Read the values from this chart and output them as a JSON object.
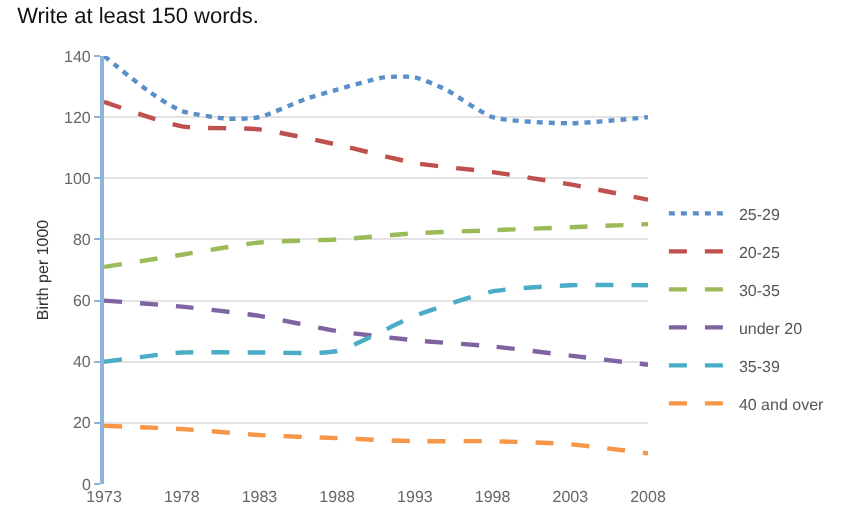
{
  "chart_data": {
    "type": "line",
    "title": "Write at least 150 words.",
    "ylabel": "Birth per 1000",
    "xlim": [
      1973,
      2008
    ],
    "xticks": [
      1973,
      1978,
      1983,
      1988,
      1993,
      1998,
      2003,
      2008
    ],
    "ylim": [
      0,
      140
    ],
    "yticks": [
      0,
      20,
      40,
      60,
      80,
      100,
      120,
      140
    ],
    "grid": "y",
    "legend": "right",
    "marker": "none",
    "series": [
      {
        "name": "25-29",
        "color": "#5b8fc9",
        "line_style": "dotted",
        "x": [
          1973,
          1976,
          1978,
          1981,
          1983,
          1986,
          1988,
          1991,
          1993,
          1995,
          1998,
          2003,
          2008
        ],
        "values": [
          140,
          128,
          122,
          119.5,
          120,
          126,
          129,
          133,
          133,
          129,
          120,
          118,
          120
        ]
      },
      {
        "name": "20-25",
        "color": "#c0504d",
        "line_style": "dashed",
        "x": [
          1973,
          1978,
          1983,
          1988,
          1993,
          1998,
          2003,
          2008
        ],
        "values": [
          125,
          117,
          116,
          111,
          105,
          102,
          98,
          93
        ]
      },
      {
        "name": "30-35",
        "color": "#9bbb59",
        "line_style": "dashed",
        "x": [
          1973,
          1978,
          1983,
          1988,
          1993,
          1998,
          2003,
          2008
        ],
        "values": [
          71,
          75,
          79,
          80,
          82,
          83,
          84,
          85
        ]
      },
      {
        "name": "under 20",
        "color": "#8064a2",
        "line_style": "dashed",
        "x": [
          1973,
          1978,
          1983,
          1988,
          1993,
          1998,
          2003,
          2008
        ],
        "values": [
          60,
          58,
          55,
          50,
          47,
          45,
          42,
          39
        ]
      },
      {
        "name": "35-39",
        "color": "#4bacc6",
        "line_style": "dashed",
        "x": [
          1973,
          1978,
          1983,
          1988,
          1993,
          1998,
          2003,
          2008
        ],
        "values": [
          40,
          43,
          43,
          43.5,
          55,
          63,
          65,
          65
        ]
      },
      {
        "name": "40 and over",
        "color": "#f79646",
        "line_style": "dashed",
        "x": [
          1973,
          1978,
          1983,
          1988,
          1993,
          1998,
          2003,
          2008
        ],
        "values": [
          19,
          18,
          16,
          15,
          14,
          14,
          13,
          10
        ]
      }
    ]
  }
}
